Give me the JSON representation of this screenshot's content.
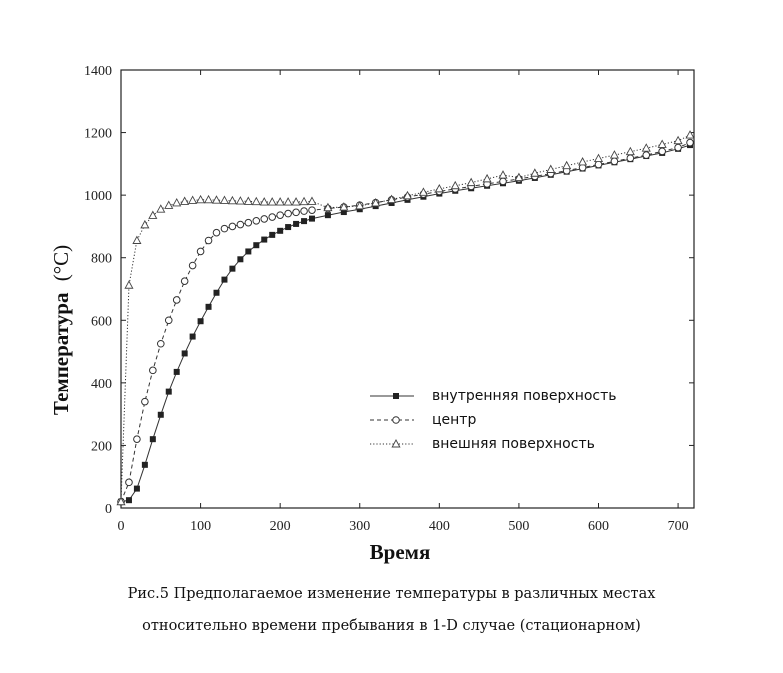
{
  "chart_data": {
    "type": "line",
    "xlabel": "Время",
    "ylabel": "Температура",
    "ylabel_unit": "(°C)",
    "xlim": [
      0,
      720
    ],
    "ylim": [
      0,
      1400
    ],
    "xticks": [
      0,
      100,
      200,
      300,
      400,
      500,
      600,
      700
    ],
    "yticks": [
      0,
      200,
      400,
      600,
      800,
      1000,
      1200,
      1400
    ],
    "grid": false,
    "legend_position": "center-right",
    "series": [
      {
        "name": "внутренняя поверхность",
        "line_style": "solid",
        "marker": "filled-square",
        "x": [
          0,
          10,
          20,
          30,
          40,
          50,
          60,
          70,
          80,
          90,
          100,
          110,
          120,
          130,
          140,
          150,
          160,
          170,
          180,
          190,
          200,
          210,
          220,
          230,
          240,
          260,
          280,
          300,
          320,
          340,
          360,
          380,
          400,
          420,
          440,
          460,
          480,
          500,
          520,
          540,
          560,
          580,
          600,
          620,
          640,
          660,
          680,
          700,
          715
        ],
        "y": [
          20,
          25,
          62,
          138,
          220,
          298,
          372,
          435,
          494,
          548,
          597,
          643,
          688,
          730,
          765,
          795,
          820,
          840,
          858,
          873,
          886,
          898,
          908,
          917,
          925,
          936,
          946,
          955,
          965,
          975,
          985,
          995,
          1005,
          1014,
          1022,
          1030,
          1038,
          1046,
          1055,
          1065,
          1075,
          1085,
          1095,
          1105,
          1115,
          1125,
          1135,
          1148,
          1160
        ]
      },
      {
        "name": "центр",
        "line_style": "dashed",
        "marker": "open-circle",
        "x": [
          0,
          10,
          20,
          30,
          40,
          50,
          60,
          70,
          80,
          90,
          100,
          110,
          120,
          130,
          140,
          150,
          160,
          170,
          180,
          190,
          200,
          210,
          220,
          230,
          240,
          260,
          280,
          300,
          320,
          340,
          360,
          380,
          400,
          420,
          440,
          460,
          480,
          500,
          520,
          540,
          560,
          580,
          600,
          620,
          640,
          660,
          680,
          700,
          715
        ],
        "y": [
          20,
          82,
          220,
          340,
          440,
          525,
          600,
          665,
          725,
          775,
          820,
          855,
          880,
          893,
          900,
          906,
          912,
          918,
          924,
          930,
          936,
          941,
          945,
          949,
          952,
          957,
          962,
          968,
          976,
          985,
          994,
          1003,
          1012,
          1020,
          1028,
          1036,
          1044,
          1052,
          1060,
          1069,
          1078,
          1088,
          1098,
          1108,
          1118,
          1128,
          1140,
          1152,
          1168
        ]
      },
      {
        "name": "внешняя поверхность",
        "line_style": "dotted",
        "marker": "open-triangle",
        "x": [
          0,
          10,
          20,
          30,
          40,
          50,
          60,
          70,
          80,
          90,
          100,
          110,
          120,
          130,
          140,
          150,
          160,
          170,
          180,
          190,
          200,
          210,
          220,
          230,
          240,
          260,
          280,
          300,
          320,
          340,
          360,
          380,
          400,
          420,
          440,
          460,
          480,
          500,
          520,
          540,
          560,
          580,
          600,
          620,
          640,
          660,
          680,
          700,
          715
        ],
        "y": [
          20,
          712,
          855,
          905,
          935,
          955,
          967,
          975,
          980,
          983,
          985,
          985,
          984,
          983,
          982,
          981,
          980,
          979,
          978,
          978,
          978,
          978,
          978,
          979,
          980,
          960,
          962,
          966,
          975,
          986,
          998,
          1009,
          1020,
          1030,
          1040,
          1052,
          1064,
          1056,
          1070,
          1082,
          1094,
          1106,
          1117,
          1128,
          1139,
          1150,
          1162,
          1174,
          1192
        ]
      }
    ]
  },
  "caption": {
    "line1": "Рис.5 Предполагаемое изменение температуры в различных местах",
    "line2": "относительно времени пребывания в 1-D случае (стационарном)"
  }
}
